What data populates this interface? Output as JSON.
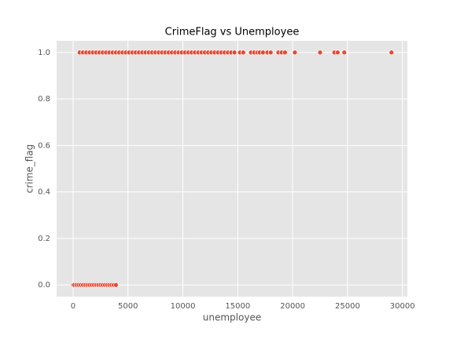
{
  "chart_data": {
    "type": "scatter",
    "title": "CrimeFlag vs Unemployee",
    "x_label": "unemployee",
    "y_label": "crime_flag",
    "color": "#e24a33",
    "x": [
      600,
      900,
      1200,
      1500,
      1800,
      2100,
      2400,
      2700,
      3000,
      3300,
      3600,
      3900,
      4200,
      4500,
      4800,
      5100,
      5400,
      5700,
      6000,
      6300,
      6600,
      6900,
      7200,
      7500,
      7800,
      8100,
      8400,
      8700,
      9000,
      9300,
      9600,
      9900,
      10200,
      10500,
      10800,
      11100,
      11400,
      11700,
      12000,
      12300,
      12600,
      12900,
      13200,
      13500,
      13800,
      14100,
      14400,
      14700,
      15200,
      15500,
      16200,
      16500,
      16800,
      17000,
      17300,
      17700,
      18000,
      18700,
      19000,
      19300,
      20200,
      22500,
      23800,
      24100,
      24700,
      29000,
      0,
      100,
      300,
      500,
      700,
      900,
      1100,
      1300,
      1500,
      1700,
      1900,
      2100,
      2300,
      2500,
      2700,
      2900,
      3100,
      3300,
      3500,
      3700,
      3900
    ],
    "values": [
      1,
      1,
      1,
      1,
      1,
      1,
      1,
      1,
      1,
      1,
      1,
      1,
      1,
      1,
      1,
      1,
      1,
      1,
      1,
      1,
      1,
      1,
      1,
      1,
      1,
      1,
      1,
      1,
      1,
      1,
      1,
      1,
      1,
      1,
      1,
      1,
      1,
      1,
      1,
      1,
      1,
      1,
      1,
      1,
      1,
      1,
      1,
      1,
      1,
      1,
      1,
      1,
      1,
      1,
      1,
      1,
      1,
      1,
      1,
      1,
      1,
      1,
      1,
      1,
      1,
      1,
      0,
      0,
      0,
      0,
      0,
      0,
      0,
      0,
      0,
      0,
      0,
      0,
      0,
      0,
      0,
      0,
      0,
      0,
      0,
      0,
      0
    ],
    "xlim": [
      -1500,
      30450
    ],
    "xticks": [
      0,
      5000,
      10000,
      15000,
      20000,
      25000,
      30000
    ],
    "ylim": [
      -0.05,
      1.05
    ],
    "yticks": [
      {
        "value": 0,
        "label": "0.0"
      },
      {
        "value": 0.2,
        "label": "0.2"
      },
      {
        "value": 0.4,
        "label": "0.4"
      },
      {
        "value": 0.6,
        "label": "0.6"
      },
      {
        "value": 0.8,
        "label": "0.8"
      },
      {
        "value": 1,
        "label": "1.0"
      }
    ],
    "grid": true
  }
}
